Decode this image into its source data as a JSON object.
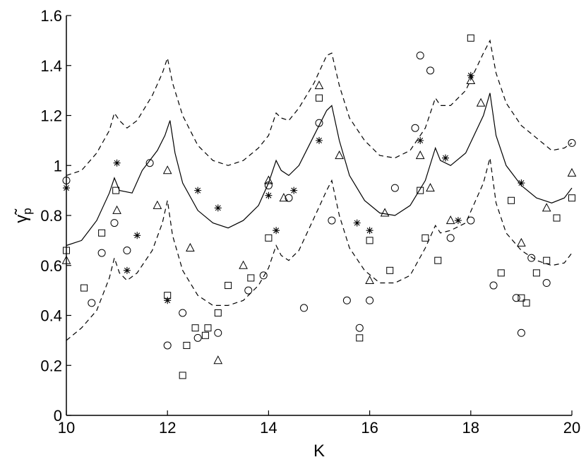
{
  "chart_data": {
    "type": "scatter",
    "title": "",
    "xlabel": "K",
    "ylabel": "γ̃p",
    "ylabel_main": "γ̃",
    "ylabel_sub": "p",
    "xlim": [
      10,
      20
    ],
    "ylim": [
      0,
      1.6
    ],
    "xticks": [
      10,
      12,
      14,
      16,
      18,
      20
    ],
    "yticks": [
      0,
      0.2,
      0.4,
      0.6,
      0.8,
      1,
      1.2,
      1.4,
      1.6
    ],
    "xtick_labels": [
      "10",
      "12",
      "14",
      "16",
      "18",
      "20"
    ],
    "ytick_labels": [
      "0",
      "0.2",
      "0.4",
      "0.6",
      "0.8",
      "1",
      "1.2",
      "1.4",
      "1.6"
    ],
    "grid": false,
    "line_color": "#000000",
    "lines": [
      {
        "style": "dashed",
        "x": [
          10.0,
          10.3,
          10.6,
          10.85,
          10.95,
          11.05,
          11.2,
          11.4,
          11.7,
          11.9,
          12.0,
          12.1,
          12.3,
          12.6,
          12.9,
          13.2,
          13.5,
          13.8,
          14.0,
          14.15,
          14.25,
          14.4,
          14.6,
          14.9,
          15.15,
          15.25,
          15.4,
          15.6,
          15.9,
          16.2,
          16.5,
          16.8,
          17.1,
          17.3,
          17.4,
          17.6,
          17.9,
          18.25,
          18.38,
          18.5,
          18.7,
          19.0,
          19.3,
          19.6,
          19.85,
          20.0
        ],
        "y": [
          0.96,
          0.98,
          1.05,
          1.14,
          1.21,
          1.18,
          1.15,
          1.18,
          1.28,
          1.37,
          1.43,
          1.33,
          1.2,
          1.08,
          1.02,
          1.0,
          1.02,
          1.07,
          1.12,
          1.21,
          1.19,
          1.18,
          1.23,
          1.33,
          1.44,
          1.45,
          1.32,
          1.19,
          1.1,
          1.04,
          1.03,
          1.06,
          1.15,
          1.27,
          1.24,
          1.24,
          1.3,
          1.45,
          1.5,
          1.37,
          1.25,
          1.16,
          1.11,
          1.06,
          1.07,
          1.09
        ]
      },
      {
        "style": "solid",
        "x": [
          10.0,
          10.3,
          10.6,
          10.85,
          10.95,
          11.05,
          11.3,
          11.5,
          11.8,
          11.95,
          12.05,
          12.15,
          12.3,
          12.6,
          12.9,
          13.2,
          13.5,
          13.8,
          14.0,
          14.15,
          14.25,
          14.4,
          14.6,
          14.9,
          15.15,
          15.25,
          15.4,
          15.6,
          15.9,
          16.2,
          16.5,
          16.8,
          17.1,
          17.3,
          17.4,
          17.6,
          17.9,
          18.25,
          18.38,
          18.5,
          18.7,
          19.0,
          19.3,
          19.6,
          19.85,
          20.0
        ],
        "y": [
          0.68,
          0.7,
          0.78,
          0.89,
          0.95,
          0.9,
          0.89,
          0.98,
          1.06,
          1.12,
          1.18,
          1.05,
          0.93,
          0.82,
          0.77,
          0.75,
          0.78,
          0.84,
          0.93,
          1.02,
          0.98,
          0.96,
          1.0,
          1.12,
          1.22,
          1.24,
          1.1,
          0.96,
          0.86,
          0.81,
          0.8,
          0.84,
          0.94,
          1.07,
          1.02,
          1.0,
          1.05,
          1.2,
          1.29,
          1.12,
          1.0,
          0.92,
          0.87,
          0.85,
          0.87,
          0.91
        ]
      },
      {
        "style": "dashed",
        "x": [
          10.0,
          10.3,
          10.6,
          10.85,
          10.95,
          11.05,
          11.2,
          11.4,
          11.7,
          11.9,
          12.0,
          12.1,
          12.3,
          12.6,
          12.9,
          13.2,
          13.5,
          13.8,
          14.0,
          14.15,
          14.25,
          14.4,
          14.6,
          14.9,
          15.15,
          15.25,
          15.4,
          15.6,
          15.9,
          16.2,
          16.5,
          16.8,
          17.1,
          17.3,
          17.4,
          17.6,
          17.9,
          18.25,
          18.38,
          18.5,
          18.7,
          19.0,
          19.3,
          19.6,
          19.85,
          20.0
        ],
        "y": [
          0.3,
          0.35,
          0.42,
          0.55,
          0.63,
          0.57,
          0.54,
          0.57,
          0.66,
          0.77,
          0.86,
          0.72,
          0.58,
          0.48,
          0.44,
          0.44,
          0.46,
          0.52,
          0.59,
          0.68,
          0.64,
          0.62,
          0.66,
          0.79,
          0.9,
          0.94,
          0.8,
          0.67,
          0.58,
          0.53,
          0.53,
          0.56,
          0.67,
          0.76,
          0.73,
          0.74,
          0.77,
          0.93,
          1.03,
          0.85,
          0.73,
          0.66,
          0.62,
          0.6,
          0.61,
          0.65
        ]
      }
    ],
    "series": [
      {
        "marker": "circle",
        "x": [
          10.0,
          10.5,
          10.7,
          10.95,
          11.2,
          11.65,
          12.0,
          12.3,
          12.6,
          13.0,
          13.6,
          13.9,
          14.0,
          14.4,
          14.7,
          15.0,
          15.25,
          15.55,
          15.8,
          16.0,
          16.5,
          16.9,
          17.0,
          17.2,
          17.6,
          18.0,
          18.45,
          18.9,
          19.0,
          19.2,
          19.5,
          20.0
        ],
        "y": [
          0.94,
          0.45,
          0.65,
          0.77,
          0.66,
          1.01,
          0.28,
          0.41,
          0.31,
          0.33,
          0.5,
          0.56,
          0.92,
          0.87,
          0.43,
          1.17,
          0.78,
          0.46,
          0.35,
          0.46,
          0.91,
          1.15,
          1.44,
          1.38,
          0.71,
          0.78,
          0.52,
          0.47,
          0.33,
          0.63,
          0.53,
          1.09
        ]
      },
      {
        "marker": "square",
        "x": [
          10.0,
          10.35,
          10.7,
          10.98,
          12.0,
          12.3,
          12.38,
          12.55,
          12.75,
          12.8,
          13.0,
          13.2,
          13.65,
          14.0,
          15.0,
          15.8,
          16.0,
          16.4,
          17.0,
          17.1,
          17.35,
          18.0,
          18.6,
          18.8,
          19.0,
          19.1,
          19.3,
          19.5,
          19.7,
          20.0
        ],
        "y": [
          0.66,
          0.51,
          0.73,
          0.9,
          0.48,
          0.16,
          0.28,
          0.35,
          0.32,
          0.35,
          0.41,
          0.52,
          0.55,
          0.71,
          1.27,
          0.31,
          0.7,
          0.58,
          0.9,
          0.71,
          0.62,
          1.51,
          0.57,
          0.86,
          0.47,
          0.45,
          0.57,
          0.62,
          0.79,
          0.87
        ]
      },
      {
        "marker": "triangle",
        "x": [
          10.0,
          11.0,
          11.8,
          12.0,
          12.45,
          13.0,
          13.5,
          14.0,
          14.3,
          15.0,
          15.4,
          16.0,
          16.3,
          17.0,
          17.2,
          17.6,
          18.0,
          18.2,
          19.0,
          19.5,
          20.0
        ],
        "y": [
          0.62,
          0.82,
          0.84,
          0.98,
          0.67,
          0.22,
          0.6,
          0.94,
          0.87,
          1.32,
          1.04,
          0.54,
          0.81,
          1.04,
          0.91,
          0.78,
          1.34,
          1.25,
          0.69,
          0.83,
          0.97
        ]
      },
      {
        "marker": "asterisk",
        "x": [
          10.0,
          11.0,
          11.2,
          11.4,
          12.0,
          12.6,
          13.0,
          14.0,
          14.15,
          14.5,
          15.0,
          15.75,
          16.0,
          17.0,
          17.75,
          17.5,
          18.0,
          19.0
        ],
        "y": [
          0.91,
          1.01,
          0.58,
          0.72,
          0.46,
          0.9,
          0.83,
          0.88,
          0.74,
          0.9,
          1.1,
          0.77,
          0.74,
          1.1,
          0.78,
          1.03,
          1.36,
          0.93
        ]
      }
    ]
  }
}
